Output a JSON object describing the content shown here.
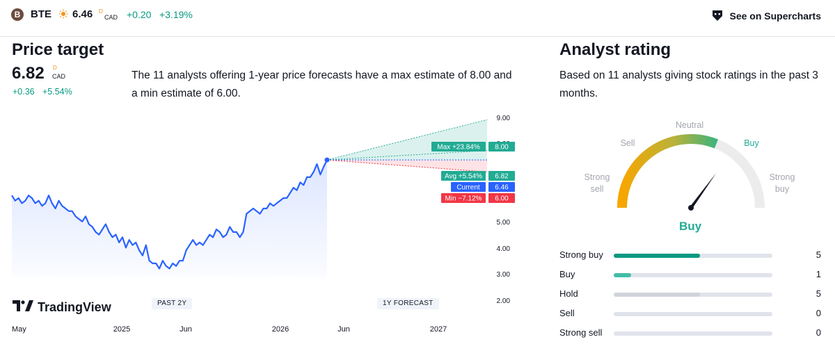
{
  "header": {
    "logo_letter": "B",
    "ticker": "BTE",
    "price": "6.46",
    "price_sup": "D",
    "currency": "CAD",
    "change": "+0.20",
    "change_pct": "+3.19%",
    "supercharts_label": "See on Supercharts"
  },
  "price_target": {
    "title": "Price target",
    "value": "6.82",
    "value_sup": "D",
    "currency": "CAD",
    "change": "+0.36",
    "change_pct": "+5.54%",
    "description": "The 11 analysts offering 1-year price forecasts have a max estimate of 8.00 and a min estimate of 6.00."
  },
  "chart": {
    "brand": "TradingView",
    "past_label": "PAST 2Y",
    "forecast_label": "1Y FORECAST",
    "x_labels": [
      "May",
      "2025",
      "Jun",
      "2026",
      "Jun",
      "2027"
    ],
    "y_labels": [
      "9.00",
      "8.00",
      "5.00",
      "4.00",
      "3.00",
      "2.00"
    ],
    "tags": [
      {
        "name": "Max",
        "label": "Max +23.84%",
        "value": "8.00",
        "color": "#22ab94"
      },
      {
        "name": "Avg",
        "label": "Avg +5.54%",
        "value": "6.82",
        "color": "#22ab94"
      },
      {
        "name": "Current",
        "label": "Current",
        "value": "6.46",
        "color": "#2962ff"
      },
      {
        "name": "Min",
        "label": "Min −7.12%",
        "value": "6.00",
        "color": "#f23645"
      }
    ]
  },
  "chart_data": {
    "type": "line",
    "title": "",
    "xlabel": "",
    "ylabel": "",
    "x_ticks": [
      "May",
      "2025",
      "Jun",
      "2026",
      "Jun",
      "2027"
    ],
    "ylim": [
      2.0,
      9.0
    ],
    "series": [
      {
        "values": [
          5.1,
          4.9,
          5.0,
          4.8,
          4.9,
          5.1,
          5.0,
          4.8,
          4.9,
          4.7,
          4.8,
          5.1,
          4.8,
          4.6,
          4.9,
          4.7,
          4.6,
          4.5,
          4.5,
          4.3,
          4.2,
          4.1,
          4.3,
          4.0,
          3.9,
          3.7,
          3.6,
          3.8,
          4.0,
          3.7,
          3.5,
          3.6,
          3.3,
          3.5,
          3.1,
          3.4,
          3.2,
          3.3,
          3.0,
          2.8,
          3.2,
          2.6,
          2.5,
          2.5,
          2.3,
          2.6,
          2.4,
          2.3,
          2.5,
          2.4,
          2.6,
          2.6,
          3.0,
          3.2,
          3.4,
          3.2,
          3.3,
          3.2,
          3.4,
          3.6,
          3.5,
          3.8,
          3.7,
          3.5,
          3.6,
          3.9,
          3.7,
          3.7,
          3.5,
          3.7,
          4.4,
          4.5,
          4.6,
          4.5,
          4.4,
          4.6,
          4.6,
          4.8,
          4.7,
          4.8,
          4.9,
          5.0,
          5.0,
          5.2,
          5.4,
          5.3,
          5.6,
          5.5,
          5.8,
          5.8,
          6.0,
          6.3,
          5.9,
          6.2,
          6.46
        ]
      }
    ],
    "forecast": {
      "current": 6.46,
      "max": 8.0,
      "avg": 6.82,
      "min": 6.0
    },
    "colors": {
      "line": "#2962ff",
      "max_area": "#22ab94",
      "min_area": "#f23645"
    }
  },
  "analyst_rating": {
    "title": "Analyst rating",
    "description": "Based on 11 analysts giving stock ratings in the past 3 months.",
    "gauge_labels": {
      "strong_sell_1": "Strong",
      "strong_sell_2": "sell",
      "sell": "Sell",
      "neutral": "Neutral",
      "buy": "Buy",
      "strong_buy_1": "Strong",
      "strong_buy_2": "buy"
    },
    "result": "Buy",
    "result_color": "#22ab94",
    "gauge_value": 0.62,
    "ratings": [
      {
        "label": "Strong buy",
        "count": "5",
        "fraction": 0.545,
        "color": "#089981"
      },
      {
        "label": "Buy",
        "count": "1",
        "fraction": 0.11,
        "color": "#42bda8"
      },
      {
        "label": "Hold",
        "count": "5",
        "fraction": 0.545,
        "color": "#d1d4dc"
      },
      {
        "label": "Sell",
        "count": "0",
        "fraction": 0,
        "color": "#d1d4dc"
      },
      {
        "label": "Strong sell",
        "count": "0",
        "fraction": 0,
        "color": "#d1d4dc"
      }
    ]
  }
}
